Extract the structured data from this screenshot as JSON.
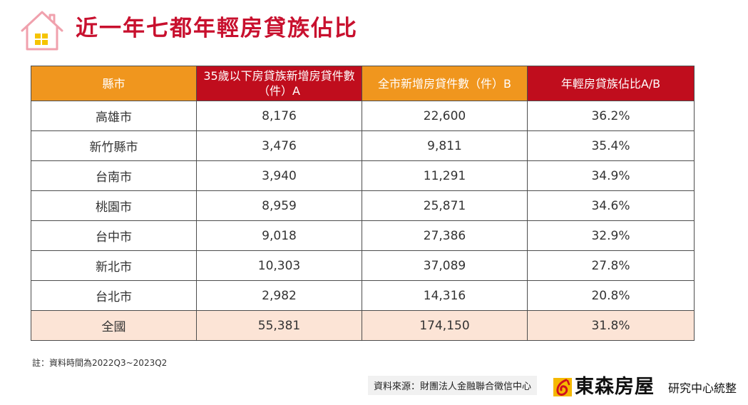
{
  "title": "近一年七都年輕房貸族佔比",
  "colors": {
    "title": "#c8102e",
    "header_orange": "#f0961e",
    "header_red": "#c00d1d",
    "total_row": "#fce4d6",
    "house_icon": "#f0a1ad",
    "window_icon": "#f5c400"
  },
  "icons": {
    "title_icon": "house-icon",
    "logo_icon": "logo-mark-icon"
  },
  "table": {
    "headers": [
      "縣市",
      "35歲以下房貸族新增房貸件數（件）A",
      "全市新增房貸件數（件）B",
      "年輕房貸族佔比A/B"
    ],
    "rows": [
      [
        "高雄市",
        "8,176",
        "22,600",
        "36.2%"
      ],
      [
        "新竹縣市",
        "3,476",
        "9,811",
        "35.4%"
      ],
      [
        "台南市",
        "3,940",
        "11,291",
        "34.9%"
      ],
      [
        "桃園市",
        "8,959",
        "25,871",
        "34.6%"
      ],
      [
        "台中市",
        "9,018",
        "27,386",
        "32.9%"
      ],
      [
        "新北市",
        "10,303",
        "37,089",
        "27.8%"
      ],
      [
        "台北市",
        "2,982",
        "14,316",
        "20.8%"
      ],
      [
        "全國",
        "55,381",
        "174,150",
        "31.8%"
      ]
    ]
  },
  "note": "註：資料時間為2022Q3~2023Q2",
  "source": "資料來源：財團法人金融聯合徵信中心",
  "logo": {
    "name": "東森房屋",
    "subtitle": "研究中心統整"
  }
}
